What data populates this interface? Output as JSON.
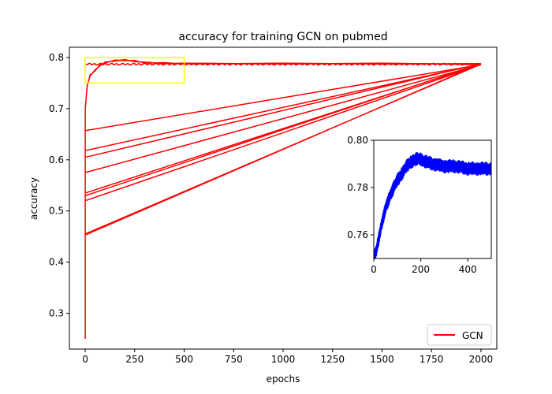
{
  "chart_data": [
    {
      "type": "line",
      "title": "accuracy for training GCN on pubmed",
      "xlabel": "epochs",
      "ylabel": "accuracy",
      "xlim": [
        -80,
        2080
      ],
      "ylim": [
        0.23,
        0.82
      ],
      "x_ticks": [
        0,
        250,
        500,
        750,
        1000,
        1250,
        1500,
        1750,
        2000
      ],
      "y_ticks": [
        0.3,
        0.4,
        0.5,
        0.6,
        0.7,
        0.8
      ],
      "legend": {
        "position": "bottom-right",
        "entries": [
          "GCN"
        ]
      },
      "grid": false,
      "colors": {
        "series": "#ff0000",
        "highlight_box": "#ffff00"
      },
      "series": [
        {
          "name": "GCN",
          "runs_note": "many training runs concatenated; each run climbs from its start accuracy to about 0.79 by epoch 150 and stays near 0.787 until epoch 2000, then the line jumps back to epoch 0 for the next run",
          "run_start_values": [
            0.25,
            0.453,
            0.455,
            0.52,
            0.53,
            0.535,
            0.575,
            0.605,
            0.618,
            0.657
          ],
          "plateau_value": 0.787,
          "final_epoch": 2000,
          "curve": {
            "x": [
              0,
              10,
              25,
              50,
              75,
              100,
              150,
              200,
              250,
              300,
              400,
              500,
              1000,
              1500,
              2000
            ],
            "y": [
              0.7,
              0.745,
              0.765,
              0.775,
              0.785,
              0.79,
              0.794,
              0.795,
              0.793,
              0.79,
              0.789,
              0.788,
              0.788,
              0.788,
              0.787
            ]
          }
        }
      ],
      "highlight_region": {
        "x": [
          0,
          500
        ],
        "y": [
          0.75,
          0.8
        ]
      }
    },
    {
      "type": "line",
      "title": "",
      "inset": true,
      "xlim": [
        0,
        500
      ],
      "ylim": [
        0.75,
        0.8
      ],
      "x_ticks": [
        0,
        200,
        400
      ],
      "y_ticks": [
        0.76,
        0.78,
        0.8
      ],
      "colors": {
        "series": "#0000ff"
      },
      "series": [
        {
          "curve": {
            "x": [
              0,
              10,
              20,
              30,
              40,
              50,
              60,
              70,
              80,
              90,
              100,
              120,
              140,
              160,
              180,
              200,
              220,
              250,
              300,
              350,
              400,
              450,
              500
            ],
            "y": [
              0.75,
              0.753,
              0.758,
              0.763,
              0.767,
              0.771,
              0.774,
              0.777,
              0.779,
              0.781,
              0.783,
              0.786,
              0.789,
              0.791,
              0.792,
              0.792,
              0.791,
              0.79,
              0.789,
              0.789,
              0.788,
              0.788,
              0.788
            ]
          }
        }
      ]
    }
  ]
}
